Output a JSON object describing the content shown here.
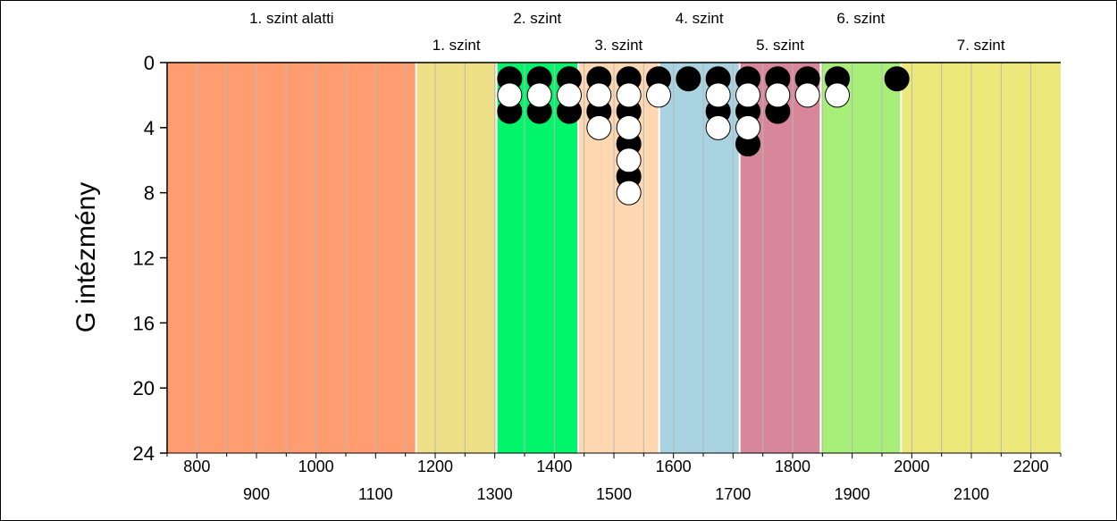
{
  "chart_data": {
    "type": "scatter",
    "ylabel": "G intézmény",
    "xlim": [
      750,
      2250
    ],
    "ylim": [
      0,
      24
    ],
    "y_inverted": true,
    "x_ticks_top_row": [
      800,
      1000,
      1200,
      1400,
      1600,
      1800,
      2000,
      2200
    ],
    "x_ticks_bottom_row": [
      900,
      1100,
      1300,
      1500,
      1700,
      1900,
      2100
    ],
    "y_ticks": [
      0,
      4,
      8,
      12,
      16,
      20,
      24
    ],
    "grid": {
      "vertical": true,
      "step": 50,
      "horizontal": false
    },
    "bands": [
      {
        "label": "1. szint alatti",
        "from": 750,
        "to": 1168,
        "color": "#ff9d70",
        "label_row": "top"
      },
      {
        "label": "1. szint",
        "from": 1168,
        "to": 1303,
        "color": "#ede087",
        "label_row": "bottom"
      },
      {
        "label": "2. szint",
        "from": 1303,
        "to": 1440,
        "color": "#00f56a",
        "label_row": "top"
      },
      {
        "label": "3. szint",
        "from": 1440,
        "to": 1576,
        "color": "#ffd7b0",
        "label_row": "bottom"
      },
      {
        "label": "4. szint",
        "from": 1576,
        "to": 1711,
        "color": "#a9d3e0",
        "label_row": "top"
      },
      {
        "label": "5. szint",
        "from": 1711,
        "to": 1847,
        "color": "#d8869a",
        "label_row": "bottom"
      },
      {
        "label": "6. szint",
        "from": 1847,
        "to": 1982,
        "color": "#a8ef7a",
        "label_row": "top"
      },
      {
        "label": "7. szint",
        "from": 1982,
        "to": 2250,
        "color": "#ede87a",
        "label_row": "bottom"
      }
    ],
    "series": [
      {
        "marker_fill": "#000000",
        "points": [
          [
            1325,
            1
          ],
          [
            1325,
            3
          ],
          [
            1375,
            1
          ],
          [
            1375,
            3
          ],
          [
            1425,
            1
          ],
          [
            1425,
            3
          ],
          [
            1475,
            1
          ],
          [
            1475,
            3
          ],
          [
            1525,
            1
          ],
          [
            1525,
            3
          ],
          [
            1525,
            5
          ],
          [
            1525,
            7
          ],
          [
            1575,
            1
          ],
          [
            1625,
            1
          ],
          [
            1675,
            1
          ],
          [
            1675,
            3
          ],
          [
            1725,
            1
          ],
          [
            1725,
            3
          ],
          [
            1725,
            5
          ],
          [
            1775,
            1
          ],
          [
            1775,
            3
          ],
          [
            1825,
            1
          ],
          [
            1875,
            1
          ],
          [
            1975,
            1
          ]
        ]
      },
      {
        "marker_fill": "#ffffff",
        "points": [
          [
            1325,
            2
          ],
          [
            1375,
            2
          ],
          [
            1425,
            2
          ],
          [
            1475,
            2
          ],
          [
            1475,
            4
          ],
          [
            1525,
            2
          ],
          [
            1525,
            4
          ],
          [
            1525,
            6
          ],
          [
            1525,
            8
          ],
          [
            1575,
            2
          ],
          [
            1675,
            2
          ],
          [
            1675,
            4
          ],
          [
            1725,
            2
          ],
          [
            1725,
            4
          ],
          [
            1775,
            2
          ],
          [
            1825,
            2
          ],
          [
            1875,
            2
          ]
        ]
      }
    ]
  }
}
